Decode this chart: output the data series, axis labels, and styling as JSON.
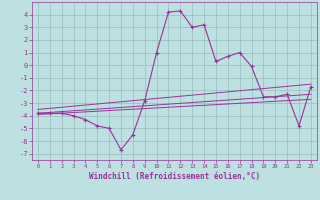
{
  "title": "",
  "xlabel": "Windchill (Refroidissement éolien,°C)",
  "x_values": [
    0,
    1,
    2,
    3,
    4,
    5,
    6,
    7,
    8,
    9,
    10,
    11,
    12,
    13,
    14,
    15,
    16,
    17,
    18,
    19,
    20,
    21,
    22,
    23
  ],
  "main_line": [
    -3.8,
    -3.8,
    -3.8,
    -4.0,
    -4.3,
    -4.8,
    -5.0,
    -6.7,
    -5.5,
    -2.8,
    1.0,
    4.2,
    4.3,
    3.0,
    3.2,
    0.3,
    0.7,
    1.0,
    -0.1,
    -2.5,
    -2.5,
    -2.3,
    -4.8,
    -1.7
  ],
  "line1_x": [
    0,
    23
  ],
  "line1_y": [
    -3.5,
    -1.5
  ],
  "line2_x": [
    0,
    23
  ],
  "line2_y": [
    -3.8,
    -2.3
  ],
  "line3_x": [
    0,
    23
  ],
  "line3_y": [
    -3.9,
    -2.7
  ],
  "bg_color": "#bde0e0",
  "line_color": "#993399",
  "grid_color": "#99bbbb",
  "ylim": [
    -7.5,
    5.0
  ],
  "yticks": [
    -7,
    -6,
    -5,
    -4,
    -3,
    -2,
    -1,
    0,
    1,
    2,
    3,
    4
  ],
  "xticks": [
    0,
    1,
    2,
    3,
    4,
    5,
    6,
    7,
    8,
    9,
    10,
    11,
    12,
    13,
    14,
    15,
    16,
    17,
    18,
    19,
    20,
    21,
    22,
    23
  ]
}
